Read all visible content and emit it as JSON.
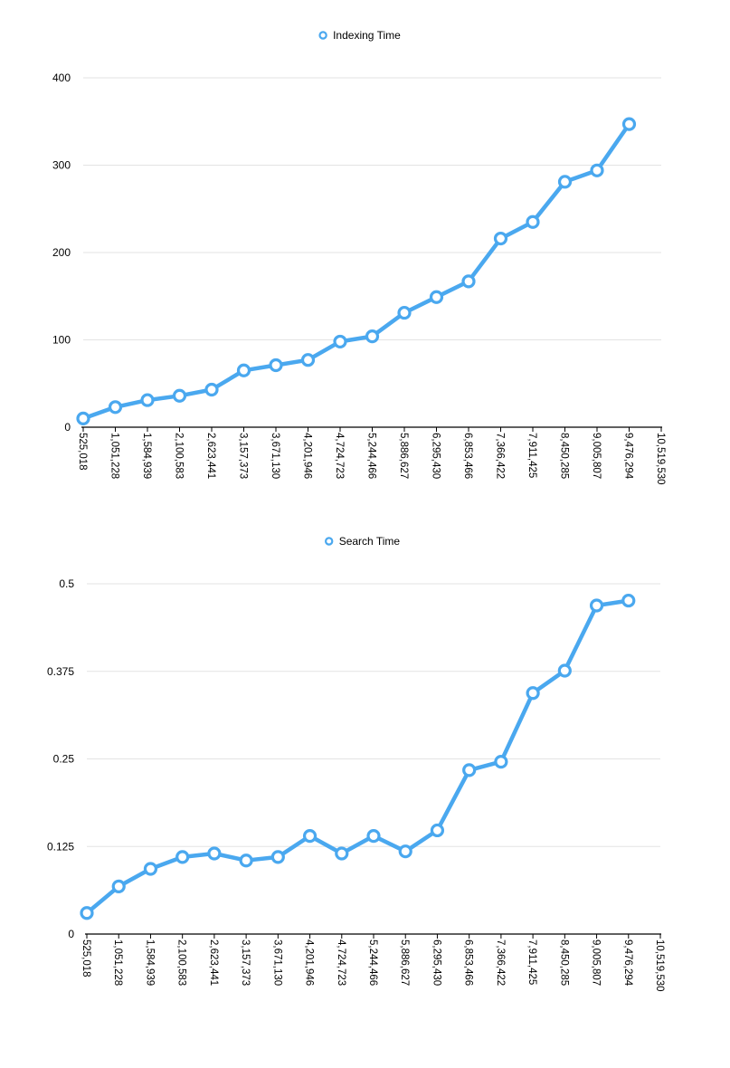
{
  "chart_data": [
    {
      "type": "line",
      "title": "",
      "xlabel": "",
      "ylabel": "",
      "categories": [
        "525,018",
        "1,051,228",
        "1,584,939",
        "2,100,583",
        "2,623,441",
        "3,157,373",
        "3,671,130",
        "4,201,946",
        "4,724,723",
        "5,244,466",
        "5,886,627",
        "6,295,430",
        "6,853,466",
        "7,366,422",
        "7,911,425",
        "8,450,285",
        "9,005,807",
        "9,476,294",
        "10,519,530"
      ],
      "series": [
        {
          "name": "Indexing Time",
          "color": "#4aa8ef",
          "values": [
            10,
            23,
            31,
            36,
            43,
            65,
            71,
            77,
            98,
            104,
            131,
            149,
            167,
            216,
            235,
            281,
            294,
            347,
            null
          ]
        }
      ],
      "ylim": [
        0,
        400
      ],
      "yticks": [
        "0",
        "100",
        "200",
        "300",
        "400"
      ],
      "grid": true,
      "legend_position": "top-center"
    },
    {
      "type": "line",
      "title": "",
      "xlabel": "",
      "ylabel": "",
      "categories": [
        "525,018",
        "1,051,228",
        "1,584,939",
        "2,100,583",
        "2,623,441",
        "3,157,373",
        "3,671,130",
        "4,201,946",
        "4,724,723",
        "5,244,466",
        "5,886,627",
        "6,295,430",
        "6,853,466",
        "7,366,422",
        "7,911,425",
        "8,450,285",
        "9,005,807",
        "9,476,294",
        "10,519,530"
      ],
      "series": [
        {
          "name": "Search Time",
          "color": "#4aa8ef",
          "values": [
            0.03,
            0.068,
            0.093,
            0.11,
            0.115,
            0.105,
            0.11,
            0.14,
            0.115,
            0.14,
            0.118,
            0.148,
            0.234,
            0.246,
            0.344,
            0.376,
            0.469,
            0.476,
            null
          ]
        }
      ],
      "ylim": [
        0,
        0.5
      ],
      "yticks": [
        "0",
        "0.125",
        "0.25",
        "0.375",
        "0.5"
      ],
      "grid": true,
      "legend_position": "top-center"
    }
  ]
}
